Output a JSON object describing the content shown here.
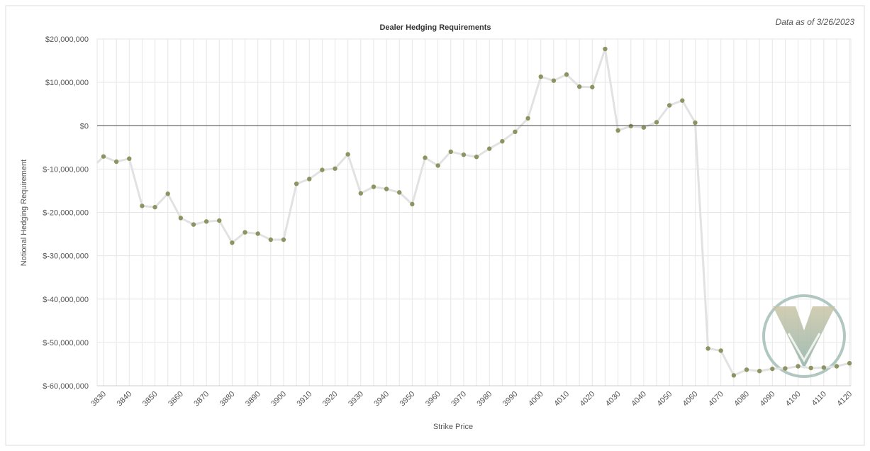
{
  "chart_data": {
    "type": "line",
    "title": "Dealer Hedging Requirements",
    "as_of": "Data as of 3/26/2023",
    "xlabel": "Strike Price",
    "ylabel": "Notional Hedging Requirement",
    "ylim": [
      -60000000,
      20000000
    ],
    "y_ticks": [
      {
        "value": 20000000,
        "label": "$20,000,000"
      },
      {
        "value": 10000000,
        "label": "$10,000,000"
      },
      {
        "value": 0,
        "label": "$0"
      },
      {
        "value": -10000000,
        "label": "$-10,000,000"
      },
      {
        "value": -20000000,
        "label": "$-20,000,000"
      },
      {
        "value": -30000000,
        "label": "$-30,000,000"
      },
      {
        "value": -40000000,
        "label": "$-40,000,000"
      },
      {
        "value": -50000000,
        "label": "$-50,000,000"
      },
      {
        "value": -60000000,
        "label": "$-60,000,000"
      }
    ],
    "x_tick_labels": [
      "3830",
      "3840",
      "3850",
      "3860",
      "3870",
      "3880",
      "3890",
      "3900",
      "3910",
      "3920",
      "3930",
      "3940",
      "3950",
      "3960",
      "3970",
      "3980",
      "3990",
      "4000",
      "4010",
      "4020",
      "4030",
      "4040",
      "4050",
      "4060",
      "4070",
      "4080",
      "4090",
      "4100",
      "4110",
      "4120"
    ],
    "grid": true,
    "line_color": "#e2e2e2",
    "marker_color": "#8c9462",
    "zero_line_color": "#444444",
    "logo_colors": {
      "ring": "#a9c1bb",
      "top": "#c9c5a6",
      "bottom": "#8fb0a6"
    },
    "strikes": [
      3830,
      3835,
      3840,
      3845,
      3850,
      3855,
      3860,
      3865,
      3870,
      3875,
      3880,
      3885,
      3890,
      3895,
      3900,
      3905,
      3910,
      3915,
      3920,
      3925,
      3930,
      3935,
      3940,
      3945,
      3950,
      3955,
      3960,
      3965,
      3970,
      3975,
      3980,
      3985,
      3990,
      3995,
      4000,
      4005,
      4010,
      4015,
      4020,
      4025,
      4030,
      4035,
      4040,
      4045,
      4050,
      4055,
      4060,
      4065,
      4070,
      4075,
      4080,
      4085,
      4090,
      4095,
      4100,
      4105,
      4110,
      4115,
      4120
    ],
    "values": [
      -7100000,
      -8300000,
      -7600000,
      -18500000,
      -18800000,
      -15700000,
      -21300000,
      -22800000,
      -22100000,
      -21900000,
      -27000000,
      -24600000,
      -24900000,
      -26300000,
      -26300000,
      -13400000,
      -12300000,
      -10200000,
      -9900000,
      -6600000,
      -15600000,
      -14100000,
      -14600000,
      -15400000,
      -18100000,
      -7400000,
      -9200000,
      -6000000,
      -6700000,
      -7200000,
      -5300000,
      -3600000,
      -1400000,
      1700000,
      11300000,
      10400000,
      11800000,
      9000000,
      8900000,
      17700000,
      -1100000,
      -100000,
      -400000,
      800000,
      4700000,
      5800000,
      700000,
      -51400000,
      -51900000,
      -57600000,
      -56300000,
      -56600000,
      -56100000,
      -56000000,
      -55500000,
      -55900000,
      -55800000,
      -55500000,
      -54800000
    ],
    "edge_values": {
      "left": -8600000,
      "right": -55800000
    }
  }
}
